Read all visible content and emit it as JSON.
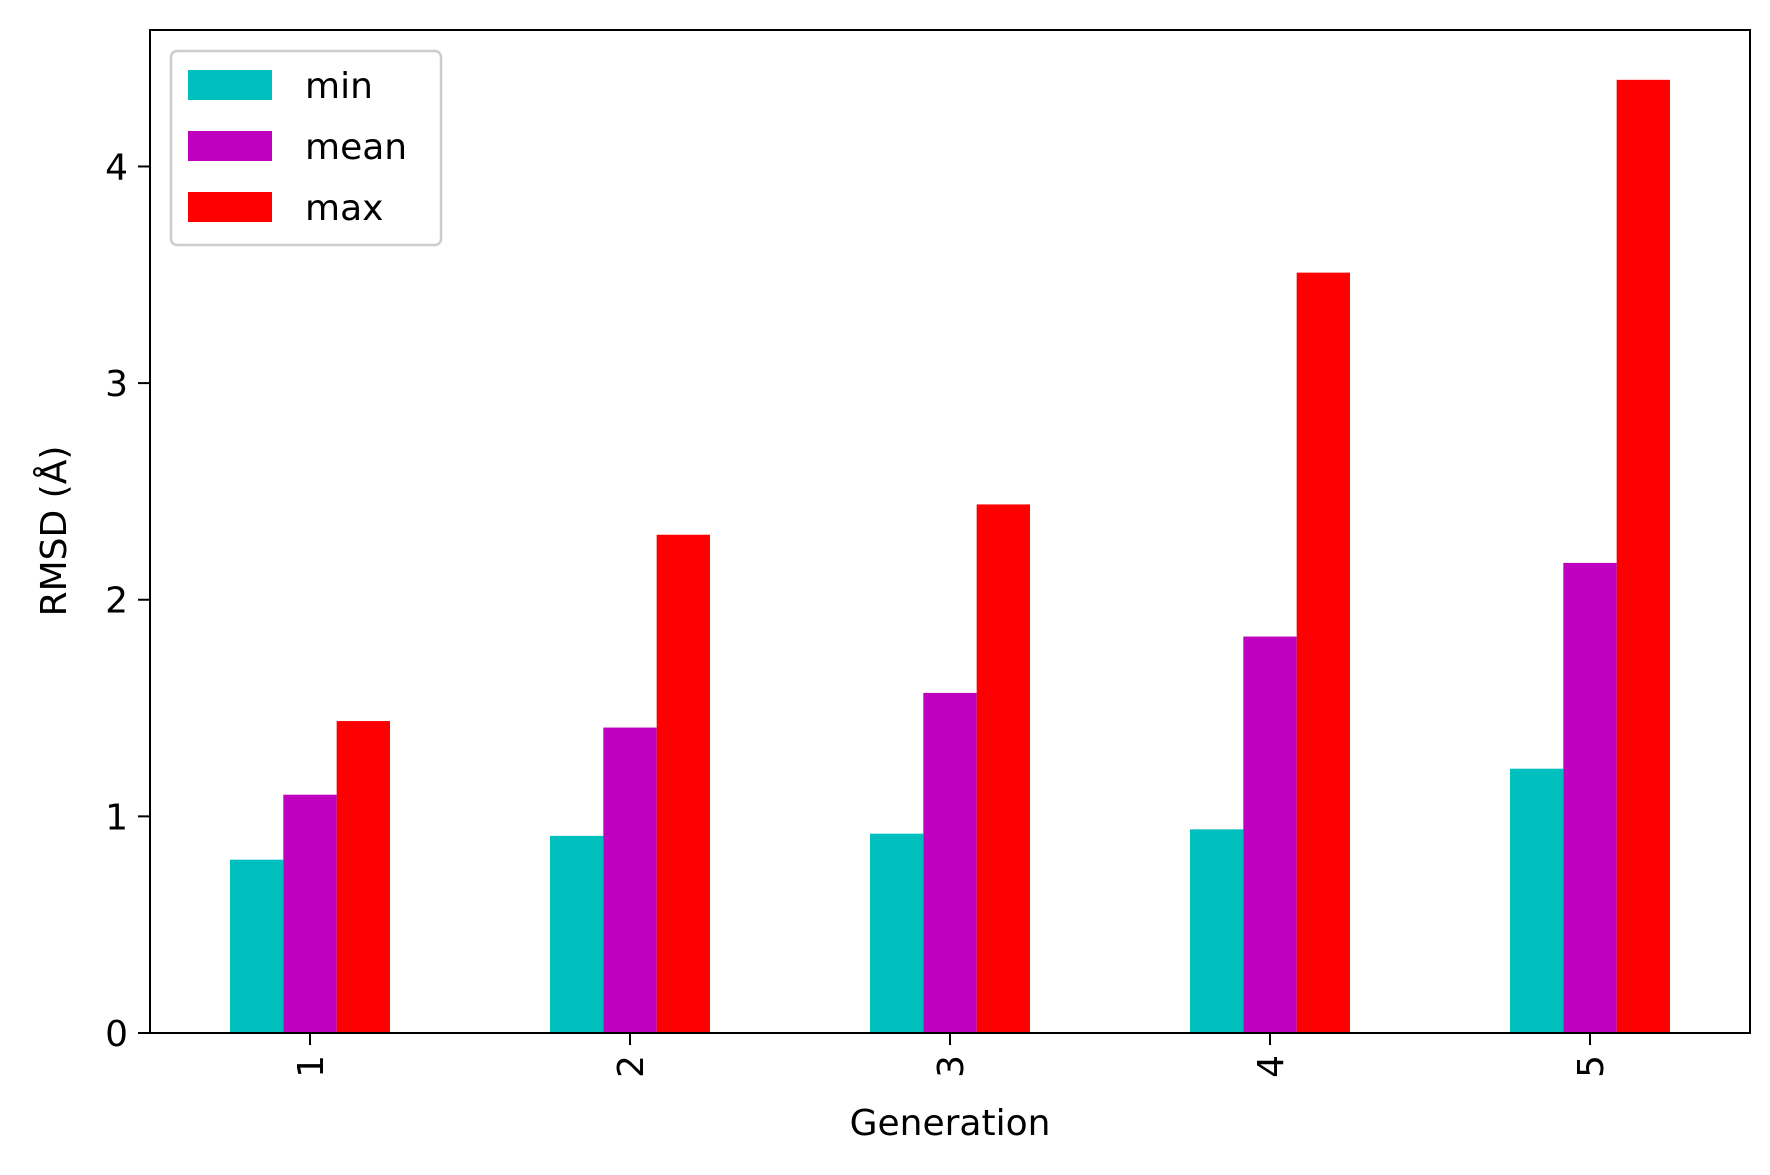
{
  "chart_data": {
    "type": "bar",
    "categories": [
      "1",
      "2",
      "3",
      "4",
      "5"
    ],
    "series": [
      {
        "name": "min",
        "color": "#00bfbf",
        "values": [
          0.8,
          0.91,
          0.92,
          0.94,
          1.22
        ]
      },
      {
        "name": "mean",
        "color": "#bf00bf",
        "values": [
          1.1,
          1.41,
          1.57,
          1.83,
          2.17
        ]
      },
      {
        "name": "max",
        "color": "#ff0000",
        "values": [
          1.44,
          2.3,
          2.44,
          3.51,
          4.4
        ]
      }
    ],
    "xlabel": "Generation",
    "ylabel": "RMSD (Å)",
    "ylim": [
      0,
      4.63
    ],
    "yticks": [
      0,
      1,
      2,
      3,
      4
    ],
    "xtick_rotation": 90,
    "grid": false,
    "legend_position": "upper-left"
  }
}
